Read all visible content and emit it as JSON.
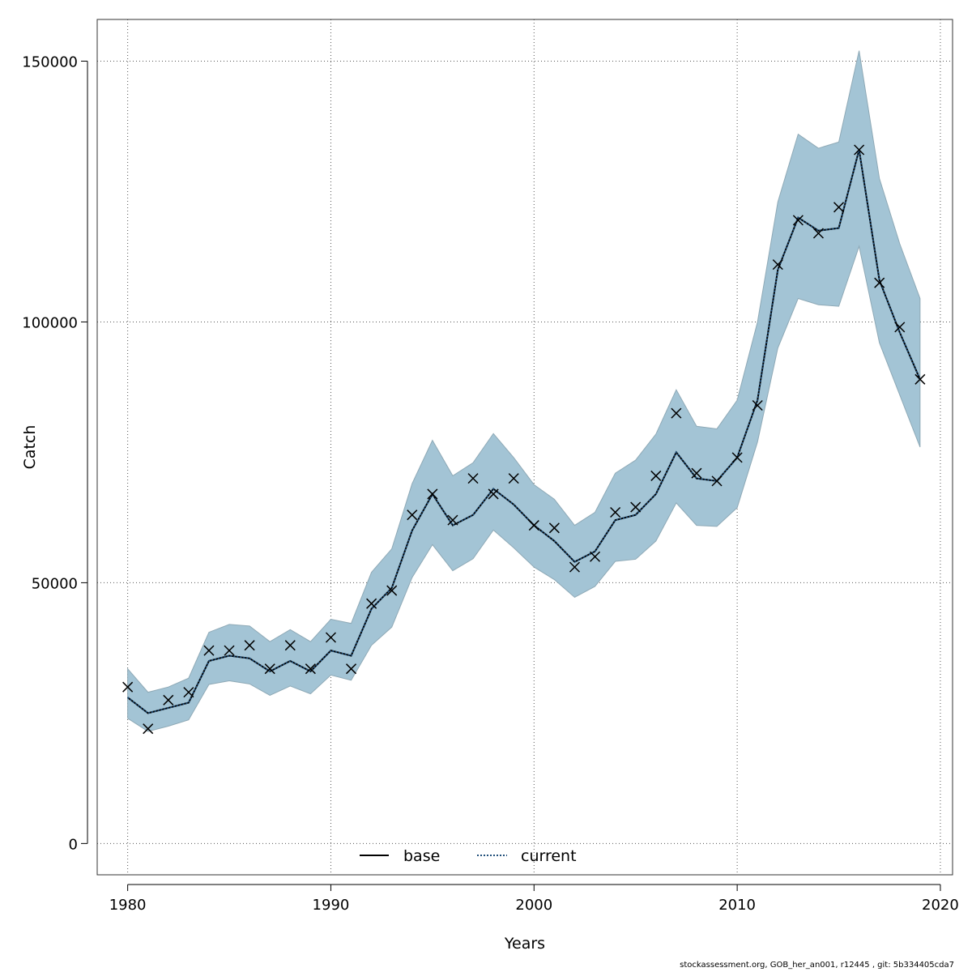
{
  "chart_data": {
    "type": "line",
    "title": "",
    "xlabel": "Years",
    "ylabel": "Catch",
    "xlim": [
      1978.5,
      2020.6
    ],
    "ylim": [
      -6000,
      158000
    ],
    "x_ticks": [
      1980,
      1990,
      2000,
      2010,
      2020
    ],
    "y_ticks": [
      0,
      50000,
      100000,
      150000
    ],
    "x_tick_labels": [
      "1980",
      "1990",
      "2000",
      "2010",
      "2020"
    ],
    "y_tick_labels": [
      "0",
      "50000",
      "100000",
      "150000"
    ],
    "grid": true,
    "legend_position": "bottom-center",
    "colors": {
      "band_fill": "#a3c4d5",
      "band_stroke": "#8ea9b6",
      "base_line": "#000000",
      "current_line": "#1f4e79",
      "observed_marker": "#000000",
      "grid": "#555555"
    },
    "x": [
      1980,
      1981,
      1982,
      1983,
      1984,
      1985,
      1986,
      1987,
      1988,
      1989,
      1990,
      1991,
      1992,
      1993,
      1994,
      1995,
      1996,
      1997,
      1998,
      1999,
      2000,
      2001,
      2002,
      2003,
      2004,
      2005,
      2006,
      2007,
      2008,
      2009,
      2010,
      2011,
      2012,
      2013,
      2014,
      2015,
      2016,
      2017,
      2018,
      2019
    ],
    "series": [
      {
        "name": "base",
        "style": "solid",
        "values": [
          28000,
          25000,
          26000,
          27000,
          35000,
          36000,
          35500,
          33000,
          35000,
          33000,
          37000,
          36000,
          45000,
          49000,
          60000,
          67000,
          61000,
          63000,
          68000,
          65000,
          61000,
          58000,
          54000,
          56000,
          62000,
          63000,
          67000,
          75000,
          70000,
          69500,
          74000,
          85000,
          110000,
          120000,
          117500,
          118000,
          133000,
          108000,
          98000,
          89000
        ]
      },
      {
        "name": "current",
        "style": "dotted",
        "values": [
          28000,
          25000,
          26000,
          27000,
          35000,
          36000,
          35500,
          33000,
          35000,
          33000,
          37000,
          36000,
          45000,
          49000,
          60000,
          67000,
          61000,
          63000,
          68000,
          65000,
          61000,
          58000,
          54000,
          56000,
          62000,
          63000,
          67000,
          75000,
          70000,
          69500,
          74000,
          85000,
          110000,
          120000,
          117500,
          118000,
          133000,
          108000,
          98000,
          89000
        ]
      }
    ],
    "band": {
      "lower": [
        24000,
        21500,
        22500,
        23700,
        30500,
        31200,
        30600,
        28400,
        30200,
        28700,
        32300,
        31300,
        38000,
        41500,
        51000,
        57300,
        52300,
        54600,
        60100,
        56700,
        53000,
        50600,
        47200,
        49300,
        54100,
        54500,
        58000,
        65300,
        61000,
        60800,
        64400,
        77000,
        95000,
        104500,
        103300,
        103000,
        114500,
        96000,
        86000,
        76000
      ],
      "upper": [
        33500,
        29000,
        30000,
        31700,
        40500,
        42000,
        41700,
        38700,
        41000,
        38700,
        43000,
        42200,
        52000,
        56500,
        69000,
        77300,
        70500,
        73000,
        78600,
        74000,
        68800,
        66000,
        61000,
        63500,
        71000,
        73500,
        78500,
        87000,
        80000,
        79500,
        85000,
        100000,
        123000,
        136000,
        133300,
        134500,
        152000,
        127500,
        115000,
        104500
      ]
    },
    "observed": {
      "marker": "x",
      "values": [
        30000,
        22000,
        27500,
        29000,
        37000,
        37000,
        38000,
        33500,
        38000,
        33500,
        39500,
        33500,
        46000,
        48500,
        63000,
        67000,
        62000,
        70000,
        67000,
        70000,
        61000,
        60500,
        53000,
        55000,
        63500,
        64500,
        70500,
        82500,
        71000,
        69500,
        74000,
        84000,
        111000,
        119500,
        117000,
        122000,
        133000,
        107500,
        99000,
        89000
      ]
    }
  },
  "footer": {
    "text": "stockassessment.org, GOB_her_an001, r12445 , git: 5b334405cda7"
  }
}
